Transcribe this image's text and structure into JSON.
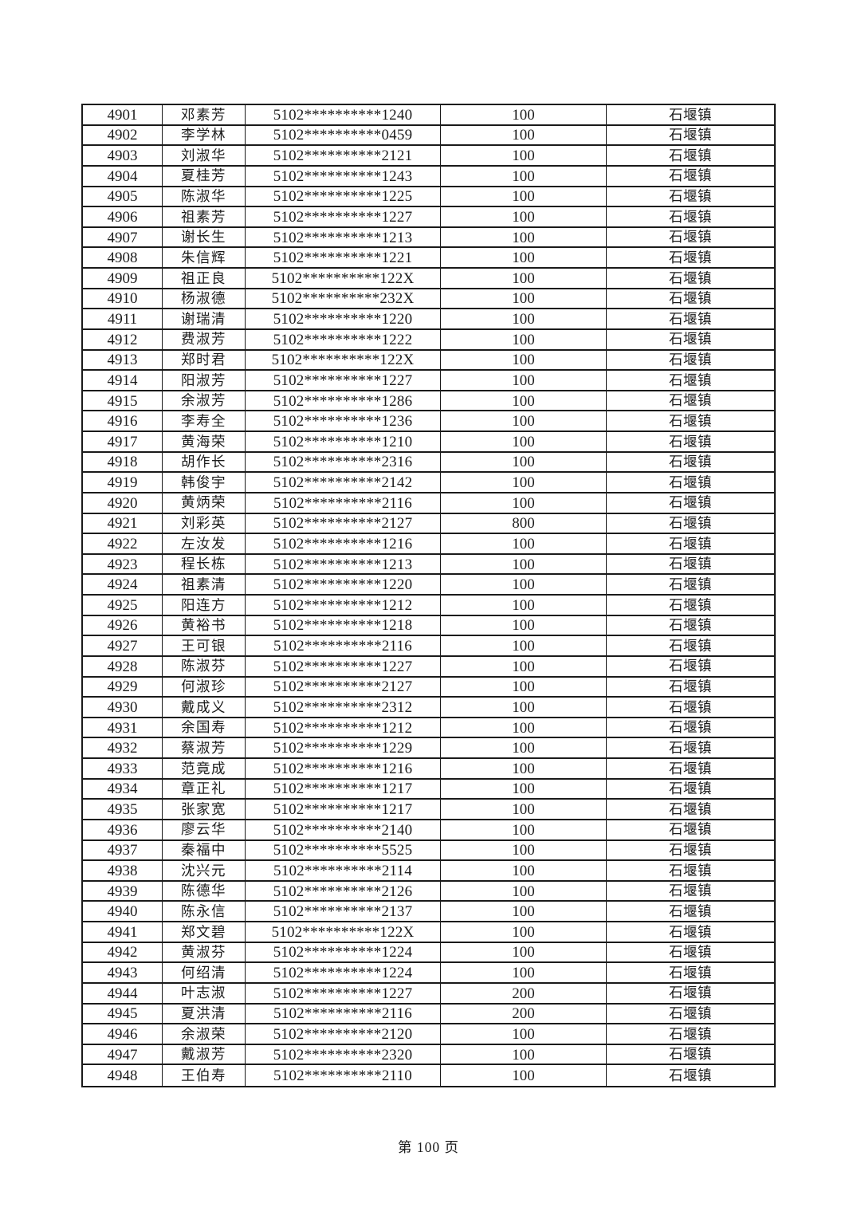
{
  "table": {
    "fields": [
      "serial",
      "name",
      "id",
      "amount",
      "town"
    ],
    "rows": [
      {
        "serial": "4901",
        "name": "邓素芳",
        "id": "5102**********1240",
        "amount": "100",
        "town": "石堰镇"
      },
      {
        "serial": "4902",
        "name": "李学林",
        "id": "5102**********0459",
        "amount": "100",
        "town": "石堰镇"
      },
      {
        "serial": "4903",
        "name": "刘淑华",
        "id": "5102**********2121",
        "amount": "100",
        "town": "石堰镇"
      },
      {
        "serial": "4904",
        "name": "夏桂芳",
        "id": "5102**********1243",
        "amount": "100",
        "town": "石堰镇"
      },
      {
        "serial": "4905",
        "name": "陈淑华",
        "id": "5102**********1225",
        "amount": "100",
        "town": "石堰镇"
      },
      {
        "serial": "4906",
        "name": "祖素芳",
        "id": "5102**********1227",
        "amount": "100",
        "town": "石堰镇"
      },
      {
        "serial": "4907",
        "name": "谢长生",
        "id": "5102**********1213",
        "amount": "100",
        "town": "石堰镇"
      },
      {
        "serial": "4908",
        "name": "朱信辉",
        "id": "5102**********1221",
        "amount": "100",
        "town": "石堰镇"
      },
      {
        "serial": "4909",
        "name": "祖正良",
        "id": "5102**********122X",
        "amount": "100",
        "town": "石堰镇"
      },
      {
        "serial": "4910",
        "name": "杨淑德",
        "id": "5102**********232X",
        "amount": "100",
        "town": "石堰镇"
      },
      {
        "serial": "4911",
        "name": "谢瑞清",
        "id": "5102**********1220",
        "amount": "100",
        "town": "石堰镇"
      },
      {
        "serial": "4912",
        "name": "费淑芳",
        "id": "5102**********1222",
        "amount": "100",
        "town": "石堰镇"
      },
      {
        "serial": "4913",
        "name": "郑时君",
        "id": "5102**********122X",
        "amount": "100",
        "town": "石堰镇"
      },
      {
        "serial": "4914",
        "name": "阳淑芳",
        "id": "5102**********1227",
        "amount": "100",
        "town": "石堰镇"
      },
      {
        "serial": "4915",
        "name": "余淑芳",
        "id": "5102**********1286",
        "amount": "100",
        "town": "石堰镇"
      },
      {
        "serial": "4916",
        "name": "李寿全",
        "id": "5102**********1236",
        "amount": "100",
        "town": "石堰镇"
      },
      {
        "serial": "4917",
        "name": "黄海荣",
        "id": "5102**********1210",
        "amount": "100",
        "town": "石堰镇"
      },
      {
        "serial": "4918",
        "name": "胡作长",
        "id": "5102**********2316",
        "amount": "100",
        "town": "石堰镇"
      },
      {
        "serial": "4919",
        "name": "韩俊宇",
        "id": "5102**********2142",
        "amount": "100",
        "town": "石堰镇"
      },
      {
        "serial": "4920",
        "name": "黄炳荣",
        "id": "5102**********2116",
        "amount": "100",
        "town": "石堰镇"
      },
      {
        "serial": "4921",
        "name": "刘彩英",
        "id": "5102**********2127",
        "amount": "800",
        "town": "石堰镇"
      },
      {
        "serial": "4922",
        "name": "左汝发",
        "id": "5102**********1216",
        "amount": "100",
        "town": "石堰镇"
      },
      {
        "serial": "4923",
        "name": "程长栋",
        "id": "5102**********1213",
        "amount": "100",
        "town": "石堰镇"
      },
      {
        "serial": "4924",
        "name": "祖素清",
        "id": "5102**********1220",
        "amount": "100",
        "town": "石堰镇"
      },
      {
        "serial": "4925",
        "name": "阳连方",
        "id": "5102**********1212",
        "amount": "100",
        "town": "石堰镇"
      },
      {
        "serial": "4926",
        "name": "黄裕书",
        "id": "5102**********1218",
        "amount": "100",
        "town": "石堰镇"
      },
      {
        "serial": "4927",
        "name": "王可银",
        "id": "5102**********2116",
        "amount": "100",
        "town": "石堰镇"
      },
      {
        "serial": "4928",
        "name": "陈淑芬",
        "id": "5102**********1227",
        "amount": "100",
        "town": "石堰镇"
      },
      {
        "serial": "4929",
        "name": "何淑珍",
        "id": "5102**********2127",
        "amount": "100",
        "town": "石堰镇"
      },
      {
        "serial": "4930",
        "name": "戴成义",
        "id": "5102**********2312",
        "amount": "100",
        "town": "石堰镇"
      },
      {
        "serial": "4931",
        "name": "余国寿",
        "id": "5102**********1212",
        "amount": "100",
        "town": "石堰镇"
      },
      {
        "serial": "4932",
        "name": "蔡淑芳",
        "id": "5102**********1229",
        "amount": "100",
        "town": "石堰镇"
      },
      {
        "serial": "4933",
        "name": "范竟成",
        "id": "5102**********1216",
        "amount": "100",
        "town": "石堰镇"
      },
      {
        "serial": "4934",
        "name": "章正礼",
        "id": "5102**********1217",
        "amount": "100",
        "town": "石堰镇"
      },
      {
        "serial": "4935",
        "name": "张家宽",
        "id": "5102**********1217",
        "amount": "100",
        "town": "石堰镇"
      },
      {
        "serial": "4936",
        "name": "廖云华",
        "id": "5102**********2140",
        "amount": "100",
        "town": "石堰镇"
      },
      {
        "serial": "4937",
        "name": "秦福中",
        "id": "5102**********5525",
        "amount": "100",
        "town": "石堰镇"
      },
      {
        "serial": "4938",
        "name": "沈兴元",
        "id": "5102**********2114",
        "amount": "100",
        "town": "石堰镇"
      },
      {
        "serial": "4939",
        "name": "陈德华",
        "id": "5102**********2126",
        "amount": "100",
        "town": "石堰镇"
      },
      {
        "serial": "4940",
        "name": "陈永信",
        "id": "5102**********2137",
        "amount": "100",
        "town": "石堰镇"
      },
      {
        "serial": "4941",
        "name": "郑文碧",
        "id": "5102**********122X",
        "amount": "100",
        "town": "石堰镇"
      },
      {
        "serial": "4942",
        "name": "黄淑芬",
        "id": "5102**********1224",
        "amount": "100",
        "town": "石堰镇"
      },
      {
        "serial": "4943",
        "name": "何绍清",
        "id": "5102**********1224",
        "amount": "100",
        "town": "石堰镇"
      },
      {
        "serial": "4944",
        "name": "叶志淑",
        "id": "5102**********1227",
        "amount": "200",
        "town": "石堰镇"
      },
      {
        "serial": "4945",
        "name": "夏洪清",
        "id": "5102**********2116",
        "amount": "200",
        "town": "石堰镇"
      },
      {
        "serial": "4946",
        "name": "余淑荣",
        "id": "5102**********2120",
        "amount": "100",
        "town": "石堰镇"
      },
      {
        "serial": "4947",
        "name": "戴淑芳",
        "id": "5102**********2320",
        "amount": "100",
        "town": "石堰镇"
      },
      {
        "serial": "4948",
        "name": "王伯寿",
        "id": "5102**********2110",
        "amount": "100",
        "town": "石堰镇"
      }
    ]
  },
  "footer": {
    "page_label": "第 100 页"
  }
}
